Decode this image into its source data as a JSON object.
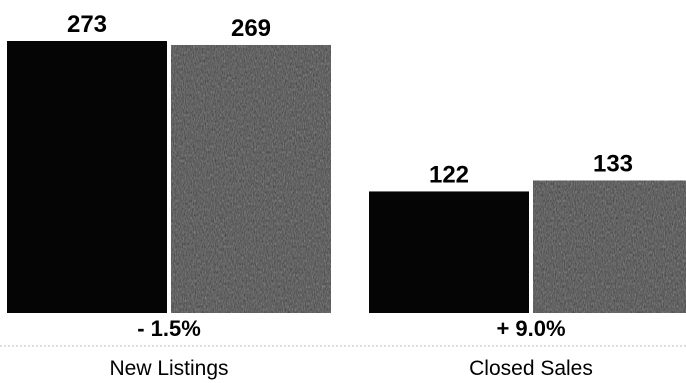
{
  "chart_data": {
    "type": "bar",
    "groups": [
      {
        "category": "New Listings",
        "values": [
          273,
          269
        ],
        "change": "- 1.5%"
      },
      {
        "category": "Closed Sales",
        "values": [
          122,
          133
        ],
        "change": "+ 9.0%"
      }
    ],
    "series": [
      {
        "color": "#050505"
      },
      {
        "color": "#3a3a3a"
      }
    ],
    "ylim": [
      0,
      273
    ],
    "grid": false,
    "legend": "none"
  }
}
